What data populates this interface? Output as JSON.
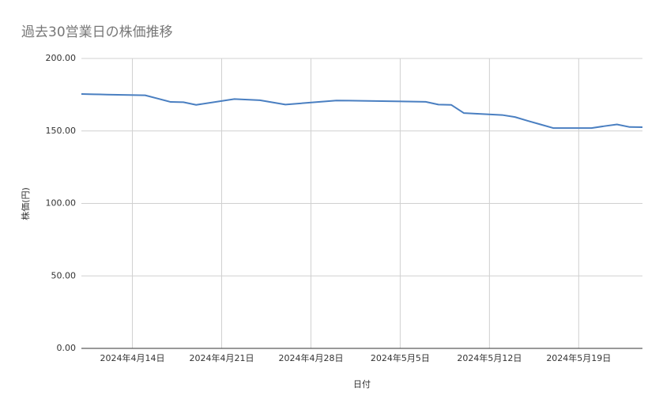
{
  "chart_data": {
    "type": "line",
    "title": "過去30営業日の株価推移",
    "x_label": "日付",
    "y_label": "株価(円)",
    "x": [
      "2024-04-10",
      "2024-04-11",
      "2024-04-12",
      "2024-04-15",
      "2024-04-16",
      "2024-04-17",
      "2024-04-18",
      "2024-04-19",
      "2024-04-22",
      "2024-04-23",
      "2024-04-24",
      "2024-04-25",
      "2024-04-26",
      "2024-04-30",
      "2024-05-01",
      "2024-05-02",
      "2024-05-07",
      "2024-05-08",
      "2024-05-09",
      "2024-05-10",
      "2024-05-13",
      "2024-05-14",
      "2024-05-15",
      "2024-05-16",
      "2024-05-17",
      "2024-05-20",
      "2024-05-21",
      "2024-05-22",
      "2024-05-23",
      "2024-05-24"
    ],
    "values": [
      175.5,
      175.3,
      175.1,
      174.6,
      172.3,
      170.0,
      169.8,
      168.0,
      172.0,
      171.6,
      171.2,
      169.7,
      168.2,
      171.0,
      170.9,
      170.8,
      170.1,
      168.2,
      168.0,
      162.3,
      161.0,
      159.6,
      157.0,
      154.5,
      152.0,
      152.0,
      153.3,
      154.5,
      152.7,
      152.6
    ],
    "color": "#4a7fc1",
    "xlim": [
      "2024-04-10",
      "2024-05-24"
    ],
    "xticks": [
      {
        "value": "2024-04-14",
        "label": "2024年4月14日"
      },
      {
        "value": "2024-04-21",
        "label": "2024年4月21日"
      },
      {
        "value": "2024-04-28",
        "label": "2024年4月28日"
      },
      {
        "value": "2024-05-05",
        "label": "2024年5月5日"
      },
      {
        "value": "2024-05-12",
        "label": "2024年5月12日"
      },
      {
        "value": "2024-05-19",
        "label": "2024年5月19日"
      }
    ],
    "ylim": [
      0,
      200
    ],
    "yticks": [
      {
        "value": 0,
        "label": "0.00"
      },
      {
        "value": 50,
        "label": "50.00"
      },
      {
        "value": 100,
        "label": "100.00"
      },
      {
        "value": 150,
        "label": "150.00"
      },
      {
        "value": 200,
        "label": "200.00"
      }
    ],
    "grid": true
  }
}
